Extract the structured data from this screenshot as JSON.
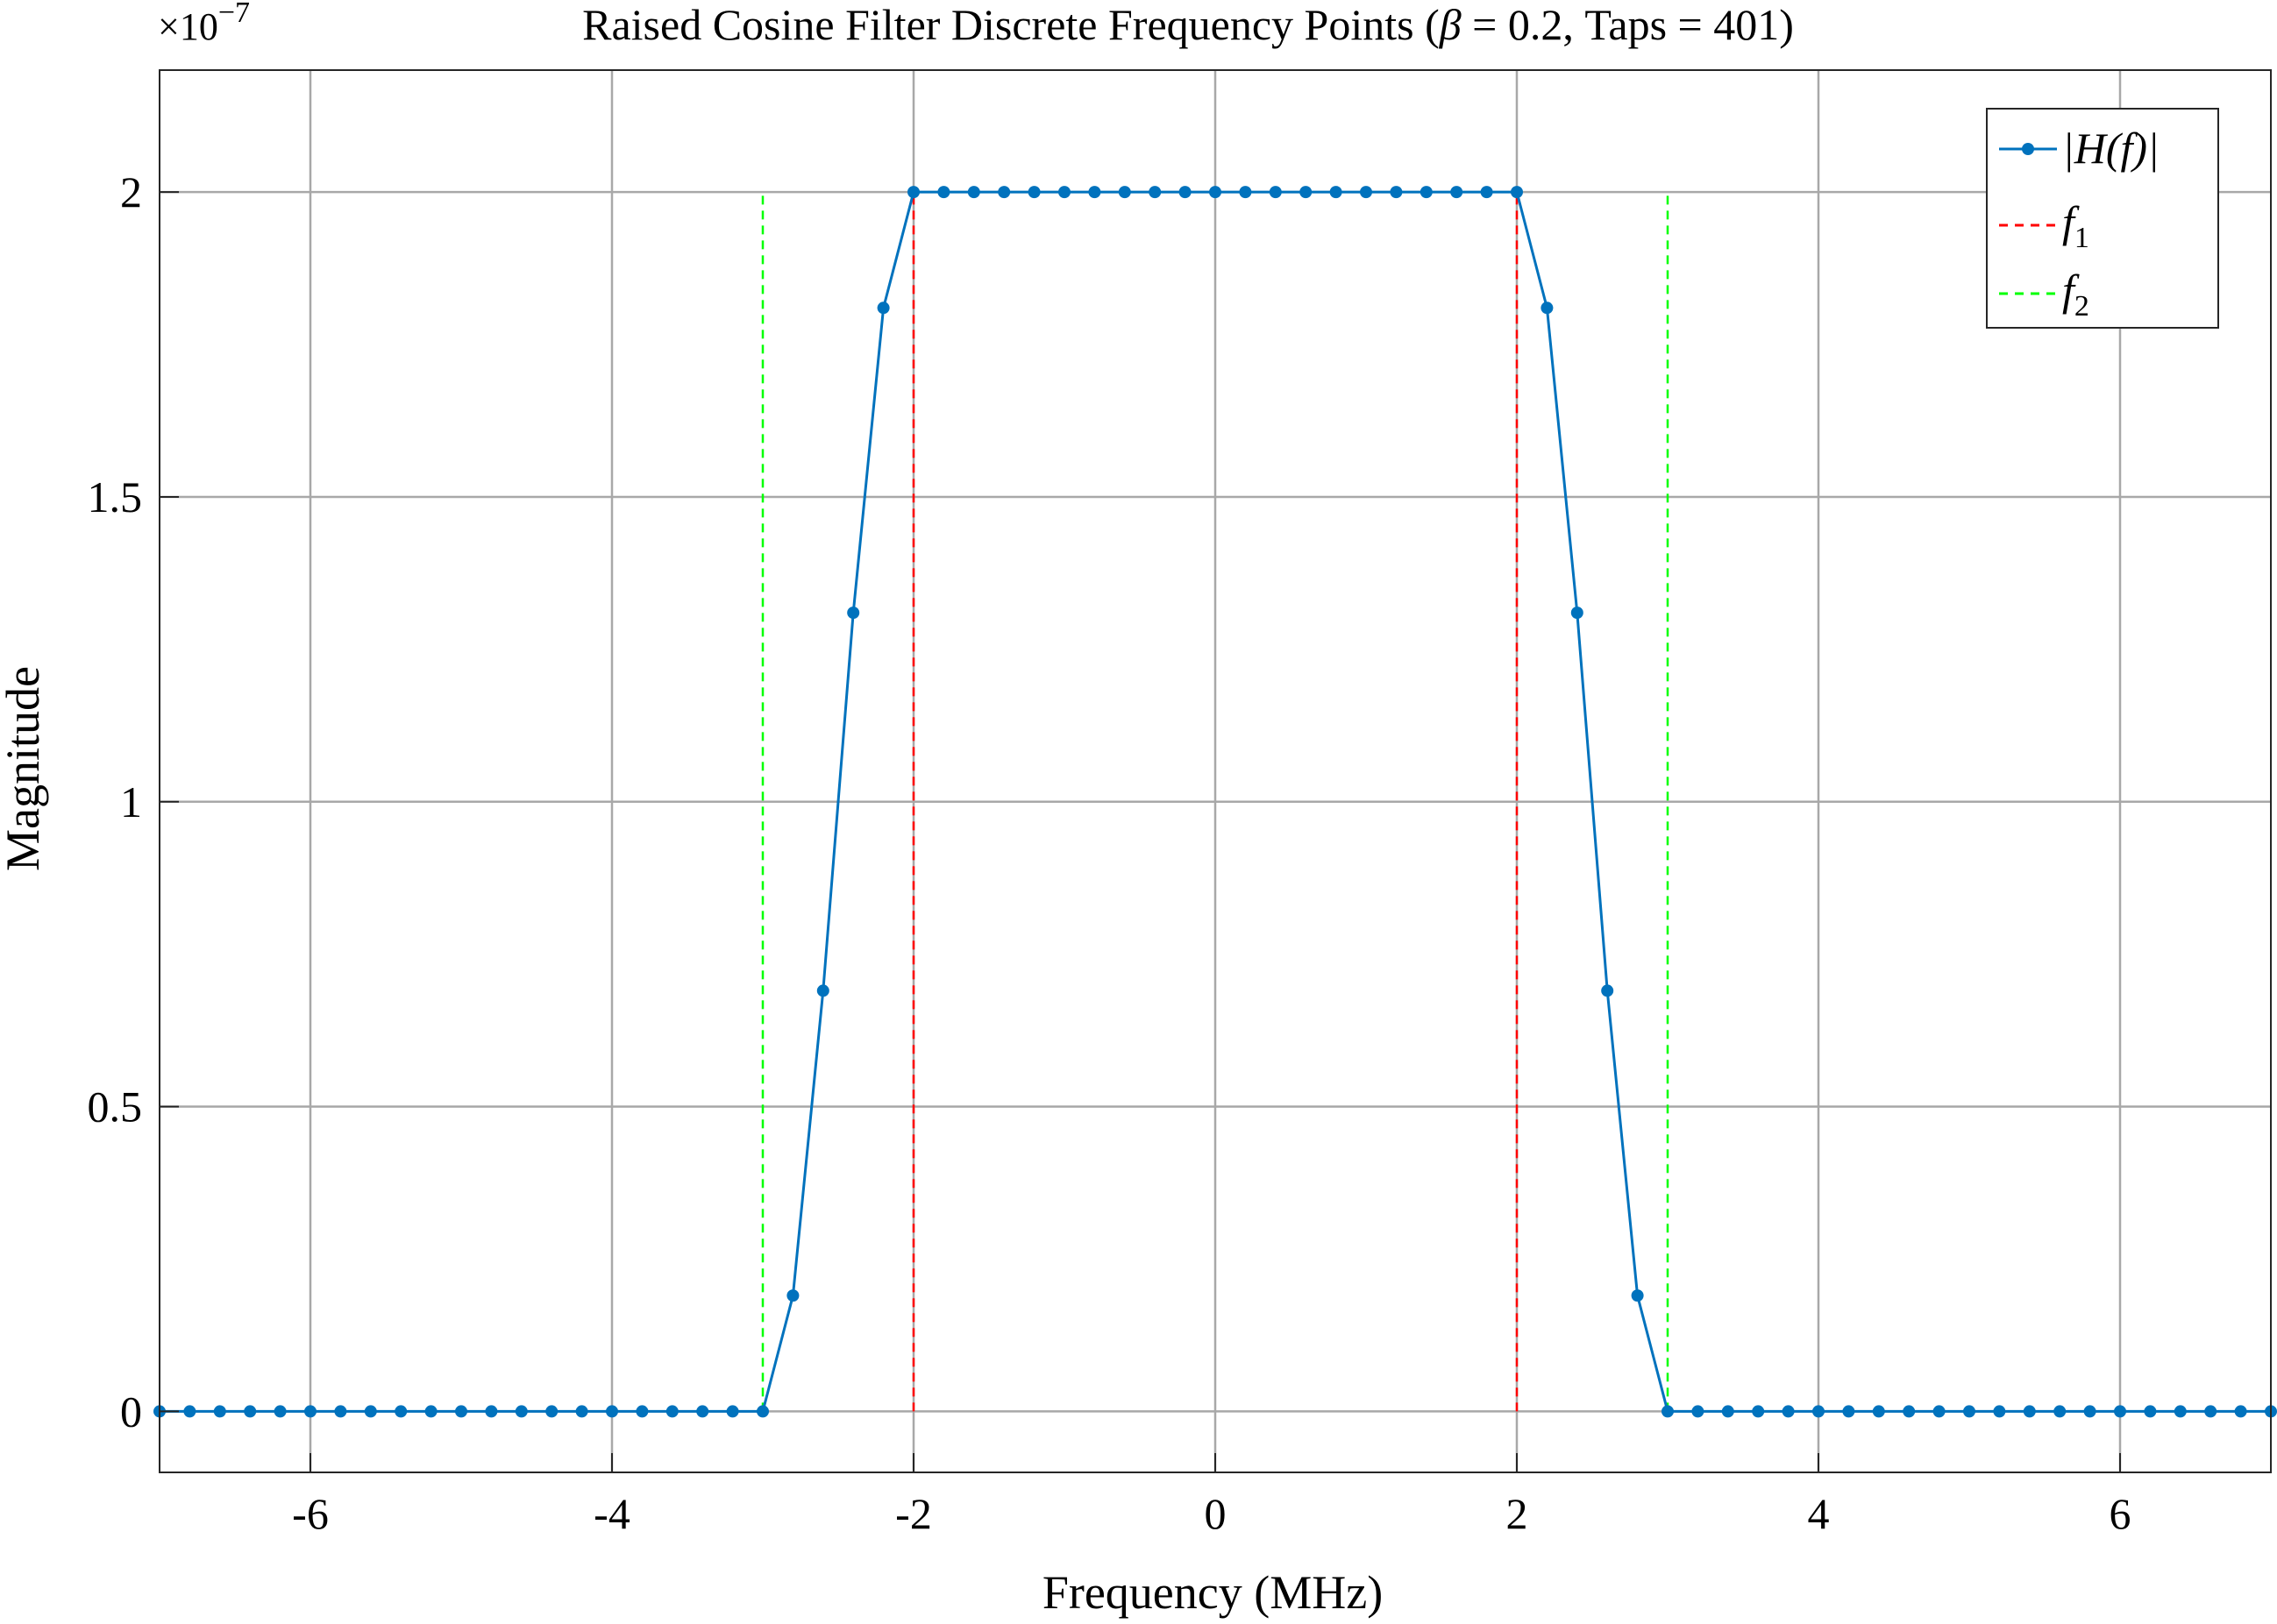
{
  "chart_data": {
    "type": "line",
    "title_parts": {
      "prefix": "Raised Cosine Filter Discrete Frequency Points (",
      "beta_symbol": "β",
      "beta_value": " = 0.2, Taps = 401)"
    },
    "xlabel": "Frequency (MHz)",
    "ylabel": "Magnitude",
    "exponent": {
      "base": "×10",
      "power": "−7"
    },
    "xlim": [
      -7,
      7
    ],
    "ylim": [
      -0.1,
      2.2
    ],
    "xticks": [
      -6,
      -4,
      -2,
      0,
      2,
      4,
      6
    ],
    "xtick_labels": [
      "-6",
      "-4",
      "-2",
      "0",
      "2",
      "4",
      "6"
    ],
    "yticks": [
      0,
      0.5,
      1,
      1.5,
      2
    ],
    "ytick_labels": [
      "0",
      "0.5",
      "1",
      "1.5",
      "2"
    ],
    "grid": true,
    "legend_position": "top-right",
    "series": [
      {
        "name": "|H(f)|",
        "color": "#0072BD",
        "style": "solid-with-markers",
        "x": [
          -7.0,
          -6.8,
          -6.6,
          -6.4,
          -6.2,
          -6.0,
          -5.8,
          -5.6,
          -5.4,
          -5.2,
          -5.0,
          -4.8,
          -4.6,
          -4.4,
          -4.2,
          -4.0,
          -3.8,
          -3.6,
          -3.4,
          -3.2,
          -3.0,
          -2.8,
          -2.6,
          -2.4,
          -2.2,
          -2.0,
          -1.8,
          -1.6,
          -1.4,
          -1.2,
          -1.0,
          -0.8,
          -0.6,
          -0.4,
          -0.2,
          0.0,
          0.2,
          0.4,
          0.6,
          0.8,
          1.0,
          1.2,
          1.4,
          1.6,
          1.8,
          2.0,
          2.2,
          2.4,
          2.6,
          2.8,
          3.0,
          3.2,
          3.4,
          3.6,
          3.8,
          4.0,
          4.2,
          4.4,
          4.6,
          4.8,
          5.0,
          5.2,
          5.4,
          5.6,
          5.8,
          6.0,
          6.2,
          6.4,
          6.6,
          6.8,
          7.0
        ],
        "y": [
          0,
          0,
          0,
          0,
          0,
          0,
          0,
          0,
          0,
          0,
          0,
          0,
          0,
          0,
          0,
          0,
          0,
          0,
          0,
          0,
          0,
          0.19,
          0.69,
          1.31,
          1.81,
          2,
          2,
          2,
          2,
          2,
          2,
          2,
          2,
          2,
          2,
          2,
          2,
          2,
          2,
          2,
          2,
          2,
          2,
          2,
          2,
          2,
          1.81,
          1.31,
          0.69,
          0.19,
          0,
          0,
          0,
          0,
          0,
          0,
          0,
          0,
          0,
          0,
          0,
          0,
          0,
          0,
          0,
          0,
          0,
          0,
          0,
          0,
          0
        ]
      },
      {
        "name": "f",
        "subscript": "1",
        "color": "#FF0000",
        "style": "dashed",
        "x_values": [
          -2,
          2
        ],
        "y_range": [
          0,
          2
        ]
      },
      {
        "name": "f",
        "subscript": "2",
        "color": "#00FF00",
        "style": "dashed",
        "x_values": [
          -3,
          3
        ],
        "y_range": [
          0,
          2
        ]
      }
    ]
  }
}
